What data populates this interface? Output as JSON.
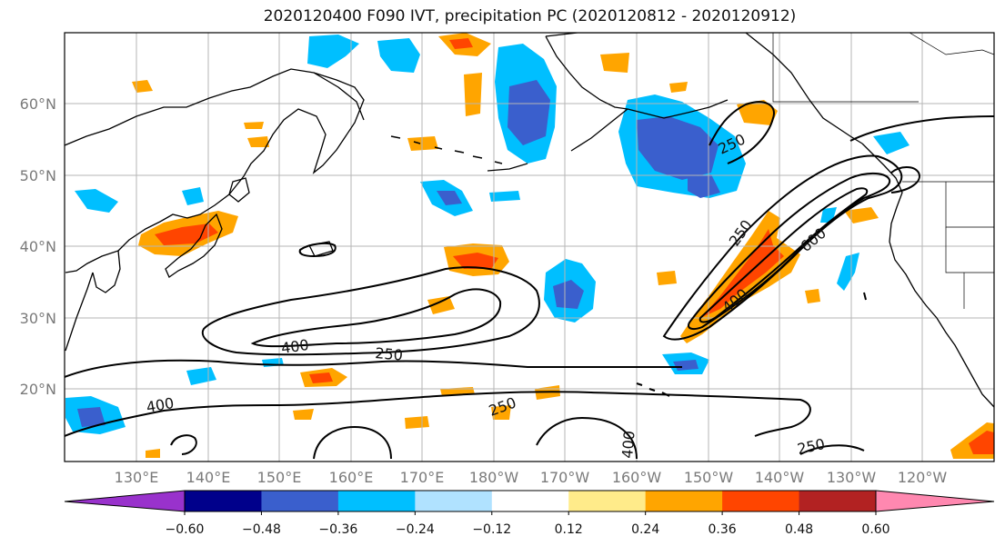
{
  "title": "2020120400 F090 IVT, precipitation PC (2020120812 - 2020120912)",
  "latitude_labels": [
    "60°N",
    "50°N",
    "40°N",
    "30°N",
    "20°N"
  ],
  "longitude_labels": [
    "130°E",
    "140°E",
    "150°E",
    "160°E",
    "170°E",
    "180°W",
    "170°W",
    "160°W",
    "150°W",
    "140°W",
    "130°W",
    "120°W"
  ],
  "colorbar": {
    "tick_labels": [
      "−0.60",
      "−0.48",
      "−0.36",
      "−0.24",
      "−0.12",
      "0.12",
      "0.24",
      "0.36",
      "0.48",
      "0.60"
    ],
    "colors": [
      "#9932cc",
      "#00008b",
      "#3a5fcd",
      "#00bfff",
      "#b0e2ff",
      "#ffffff",
      "#ffeb8a",
      "#ffa500",
      "#ff4500",
      "#b22222",
      "#ff88b0"
    ]
  },
  "contour_labels": [
    "250",
    "250",
    "250",
    "250",
    "250",
    "400",
    "400",
    "400",
    "400",
    "600"
  ]
}
